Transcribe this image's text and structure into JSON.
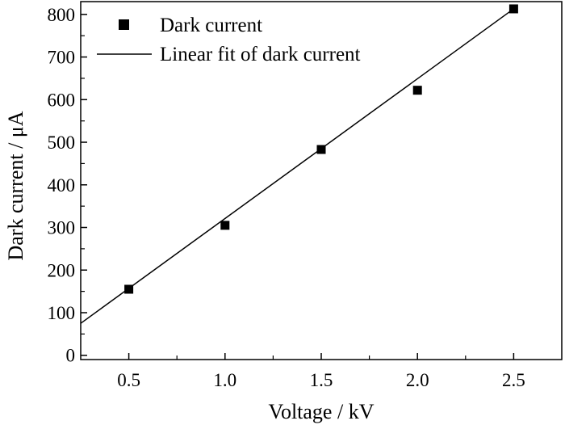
{
  "chart_data": {
    "type": "scatter",
    "xlabel": "Voltage / kV",
    "ylabel": "Dark current / μA",
    "xlim": [
      0.25,
      2.75
    ],
    "ylim": [
      -10,
      830
    ],
    "xticks": [
      0.5,
      1.0,
      1.5,
      2.0,
      2.5
    ],
    "xtick_labels": [
      "0.5",
      "1.0",
      "1.5",
      "2.0",
      "2.5"
    ],
    "yticks": [
      0,
      100,
      200,
      300,
      400,
      500,
      600,
      700,
      800
    ],
    "ytick_labels": [
      "0",
      "100",
      "200",
      "300",
      "400",
      "500",
      "600",
      "700",
      "800"
    ],
    "grid": false,
    "legend_position": "top-left",
    "series": [
      {
        "name": "Dark current",
        "kind": "scatter",
        "marker": "square",
        "x": [
          0.5,
          1.0,
          1.5,
          2.0,
          2.5
        ],
        "y": [
          155,
          305,
          483,
          622,
          813
        ],
        "color": "#000000"
      },
      {
        "name": "Linear fit of dark current",
        "kind": "line",
        "x": [
          0.25,
          2.5
        ],
        "y": [
          75,
          813
        ],
        "color": "#000000"
      }
    ]
  }
}
